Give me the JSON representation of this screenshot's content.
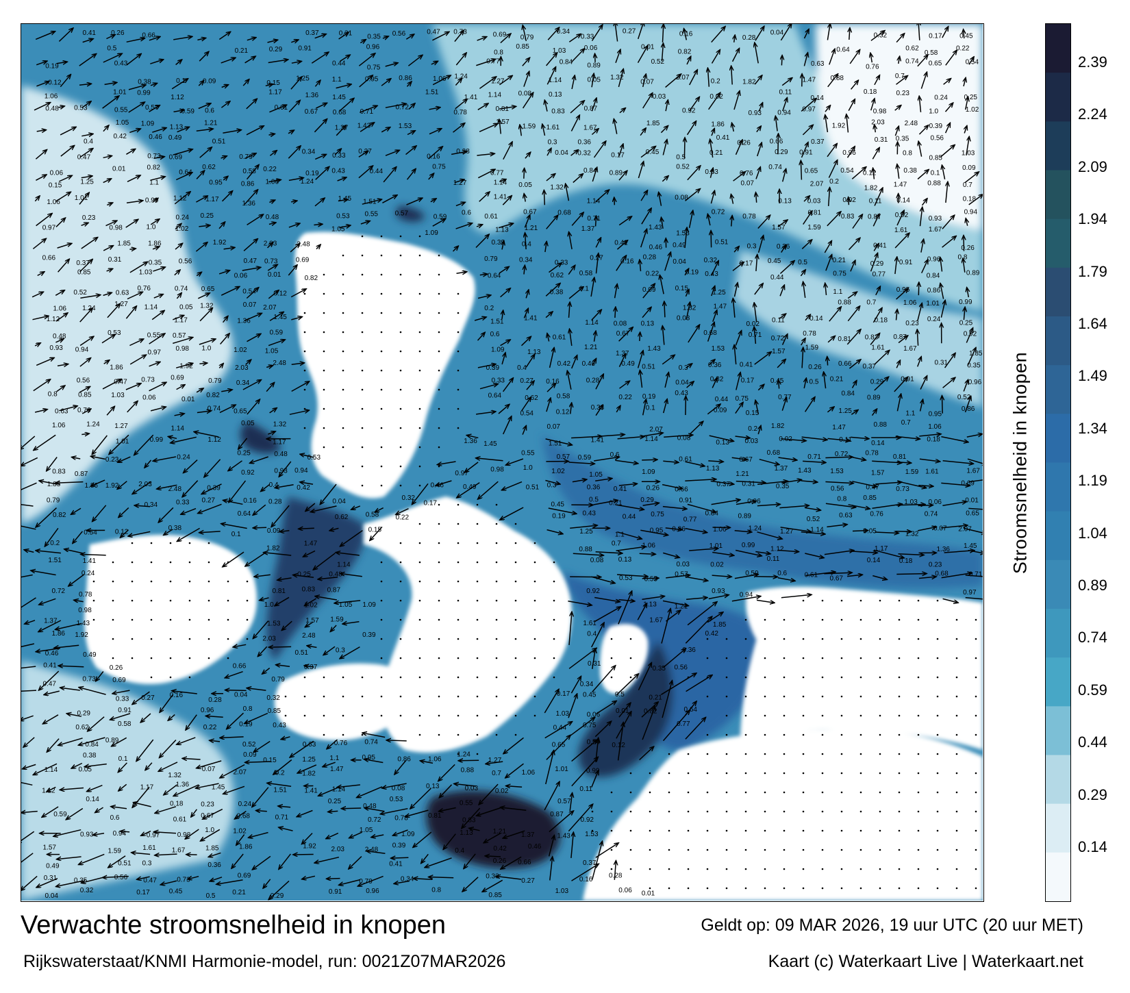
{
  "map": {
    "title": "Verwachte stroomsnelheid in knopen",
    "valid_time": "Geldt op: 09 MAR 2026, 19 uur UTC (20 uur MET)",
    "model_run": "Rijkswaterstaat/KNMI Harmonie-model, run: 0021Z07MAR2026",
    "credit": "Kaart (c) Waterkaart Live | Waterkaart.net",
    "unit": "knopen"
  },
  "colorbar": {
    "title": "Stroomsnelheid in knopen",
    "ticks": [
      "2.39",
      "2.24",
      "2.09",
      "1.94",
      "1.79",
      "1.64",
      "1.49",
      "1.34",
      "1.19",
      "1.04",
      "0.89",
      "0.74",
      "0.59",
      "0.44",
      "0.29",
      "0.14"
    ],
    "colors": [
      "#1b1b33",
      "#1c2a47",
      "#1d3d59",
      "#24525e",
      "#255c6b",
      "#2b4d72",
      "#2c5a86",
      "#2e6596",
      "#2c6ca8",
      "#2f77ad",
      "#3180b1",
      "#3a8ab6",
      "#3e98bd",
      "#47a7c6",
      "#7cbfd6",
      "#b4d9e6",
      "#dcedf4",
      "#f4f9fc"
    ],
    "accent_colors": {
      "high": "#1b1b33",
      "mid": "#2c6ca8",
      "low": "#dcedf4"
    }
  },
  "sample_speed_labels": [
    "0.41",
    "0.26",
    "0.66",
    "0.37",
    "0.31",
    "0.35",
    "0.56",
    "0.47",
    "0.73",
    "0.69",
    "0.79",
    "0.34",
    "0.33",
    "0.27",
    "0.16",
    "0.28",
    "0.04",
    "0.32",
    "0.17",
    "0.45",
    "0.5",
    "0.21",
    "0.29",
    "0.91",
    "0.96",
    "0.8",
    "0.85",
    "1.03",
    "0.06",
    "0.01",
    "0.82",
    "0.64",
    "0.62",
    "0.58",
    "0.22",
    "0.19",
    "0.43",
    "0.44",
    "0.75",
    "0.77",
    "0.84",
    "0.89",
    "0.52",
    "0.63",
    "0.76",
    "0.74",
    "0.65",
    "0.54",
    "0.12",
    "0.38",
    "0.1",
    "0.09",
    "0.15",
    "1.25",
    "1.1",
    "0.95",
    "0.86",
    "1.06",
    "1.24",
    "1.27",
    "1.14",
    "0.05",
    "1.32",
    "0.07",
    "2.07",
    "0.2",
    "1.82",
    "1.47",
    "0.88",
    "0.7",
    "1.06",
    "1.01",
    "0.99",
    "1.12",
    "1.17",
    "1.36",
    "1.45",
    "1.51",
    "1.41",
    "1.14",
    "0.08",
    "0.13",
    "0.03",
    "0.02",
    "0.11",
    "0.14",
    "0.18",
    "0.23",
    "0.24",
    "0.25",
    "0.48",
    "0.53",
    "0.55",
    "0.57",
    "0.59",
    "0.6",
    "0.61",
    "0.67",
    "0.68",
    "0.71",
    "0.72",
    "0.78",
    "0.81",
    "0.83",
    "0.87",
    "0.92",
    "0.93",
    "0.94",
    "0.97",
    "0.98",
    "1.0",
    "1.02",
    "1.05",
    "1.09",
    "1.13",
    "1.21",
    "1.37",
    "1.43",
    "1.53",
    "1.57",
    "1.59",
    "1.61",
    "1.67",
    "1.85",
    "1.86",
    "1.92",
    "2.03",
    "2.48",
    "0.39",
    "0.4",
    "0.42",
    "0.46",
    "0.49",
    "0.51",
    "0.3",
    "0.36"
  ]
}
